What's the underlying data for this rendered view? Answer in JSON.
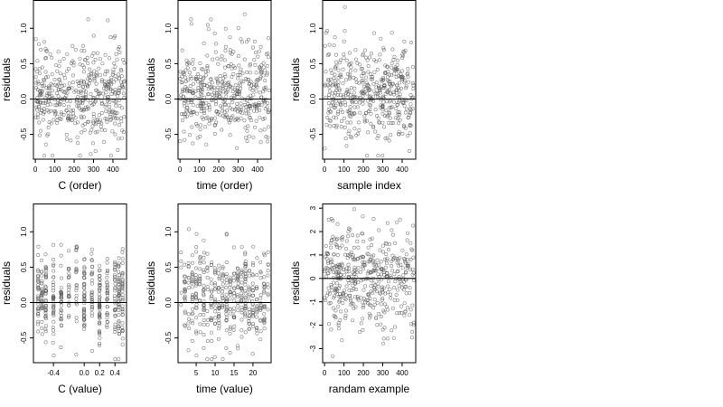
{
  "chart_data": [
    {
      "type": "scatter",
      "xlabel": "C (order)",
      "ylabel": "residuals",
      "xlim": [
        -10,
        470
      ],
      "ylim": [
        -0.85,
        1.4
      ],
      "xticks": [
        0,
        100,
        200,
        300,
        400
      ],
      "xtick_labels": [
        "0",
        "100",
        "200",
        "300",
        "400"
      ],
      "yticks": [
        -0.5,
        0,
        0.5,
        1
      ],
      "ytick_labels": [
        "-0.5",
        "0.0",
        "0.5",
        "1.0"
      ],
      "reference_line_y": 0,
      "grid": false,
      "legend": "none",
      "n_points": 460,
      "x_range": [
        0,
        460
      ],
      "y_range": [
        -0.8,
        1.35
      ]
    },
    {
      "type": "scatter",
      "xlabel": "time (order)",
      "ylabel": "residuals",
      "xlim": [
        -10,
        470
      ],
      "ylim": [
        -0.85,
        1.4
      ],
      "xticks": [
        0,
        100,
        200,
        300,
        400
      ],
      "xtick_labels": [
        "0",
        "100",
        "200",
        "300",
        "400"
      ],
      "yticks": [
        -0.5,
        0,
        0.5,
        1
      ],
      "ytick_labels": [
        "-0.5",
        "0.0",
        "0.5",
        "1.0"
      ],
      "reference_line_y": 0,
      "grid": false,
      "legend": "none",
      "n_points": 460,
      "x_range": [
        0,
        460
      ],
      "y_range": [
        -0.8,
        1.35
      ]
    },
    {
      "type": "scatter",
      "xlabel": "sample index",
      "ylabel": "residuals",
      "xlim": [
        -10,
        470
      ],
      "ylim": [
        -0.85,
        1.4
      ],
      "xticks": [
        0,
        100,
        200,
        300,
        400
      ],
      "xtick_labels": [
        "0",
        "100",
        "200",
        "300",
        "400"
      ],
      "yticks": [
        -0.5,
        0,
        0.5,
        1
      ],
      "ytick_labels": [
        "-0.5",
        "0.0",
        "0.5",
        "1.0"
      ],
      "reference_line_y": 0,
      "grid": false,
      "legend": "none",
      "n_points": 460,
      "x_range": [
        0,
        460
      ],
      "y_range": [
        -0.8,
        1.35
      ]
    },
    {
      "type": "scatter",
      "xlabel": "C (value)",
      "ylabel": "residuals",
      "xlim": [
        -0.66,
        0.55
      ],
      "ylim": [
        -0.85,
        1.4
      ],
      "xticks": [
        -0.4,
        0,
        0.2,
        0.4
      ],
      "xtick_labels": [
        "-0.4",
        "0.0",
        "0.2",
        "0.4"
      ],
      "yticks": [
        -0.5,
        0,
        0.5,
        1
      ],
      "ytick_labels": [
        "-0.5",
        "0.0",
        "0.5",
        "1.0"
      ],
      "reference_line_y": 0,
      "grid": false,
      "legend": "none",
      "n_points": 460,
      "x_range": [
        -0.6,
        0.5
      ],
      "y_range": [
        -0.8,
        1.35
      ]
    },
    {
      "type": "scatter",
      "xlabel": "time (value)",
      "ylabel": "residuals",
      "xlim": [
        0.2,
        24.8
      ],
      "ylim": [
        -0.85,
        1.4
      ],
      "xticks": [
        5,
        10,
        15,
        20
      ],
      "xtick_labels": [
        "5",
        "10",
        "15",
        "20"
      ],
      "yticks": [
        -0.5,
        0,
        0.5,
        1
      ],
      "ytick_labels": [
        "-0.5",
        "0.0",
        "0.5",
        "1.0"
      ],
      "reference_line_y": 0,
      "grid": false,
      "legend": "none",
      "n_points": 460,
      "x_range": [
        1,
        24
      ],
      "y_range": [
        -0.8,
        1.35
      ]
    },
    {
      "type": "scatter",
      "xlabel": "randam example",
      "ylabel": "residuals",
      "xlim": [
        -10,
        470
      ],
      "ylim": [
        -3.6,
        3.2
      ],
      "xticks": [
        0,
        100,
        200,
        300,
        400
      ],
      "xtick_labels": [
        "0",
        "100",
        "200",
        "300",
        "400"
      ],
      "yticks": [
        -3,
        -2,
        -1,
        0,
        1,
        2,
        3
      ],
      "ytick_labels": [
        "-3",
        "-2",
        "-1",
        "0",
        "1",
        "2",
        "3"
      ],
      "reference_line_y": 0,
      "grid": false,
      "legend": "none",
      "n_points": 460,
      "x_range": [
        0,
        460
      ],
      "y_range": [
        -3.4,
        3.0
      ]
    }
  ]
}
